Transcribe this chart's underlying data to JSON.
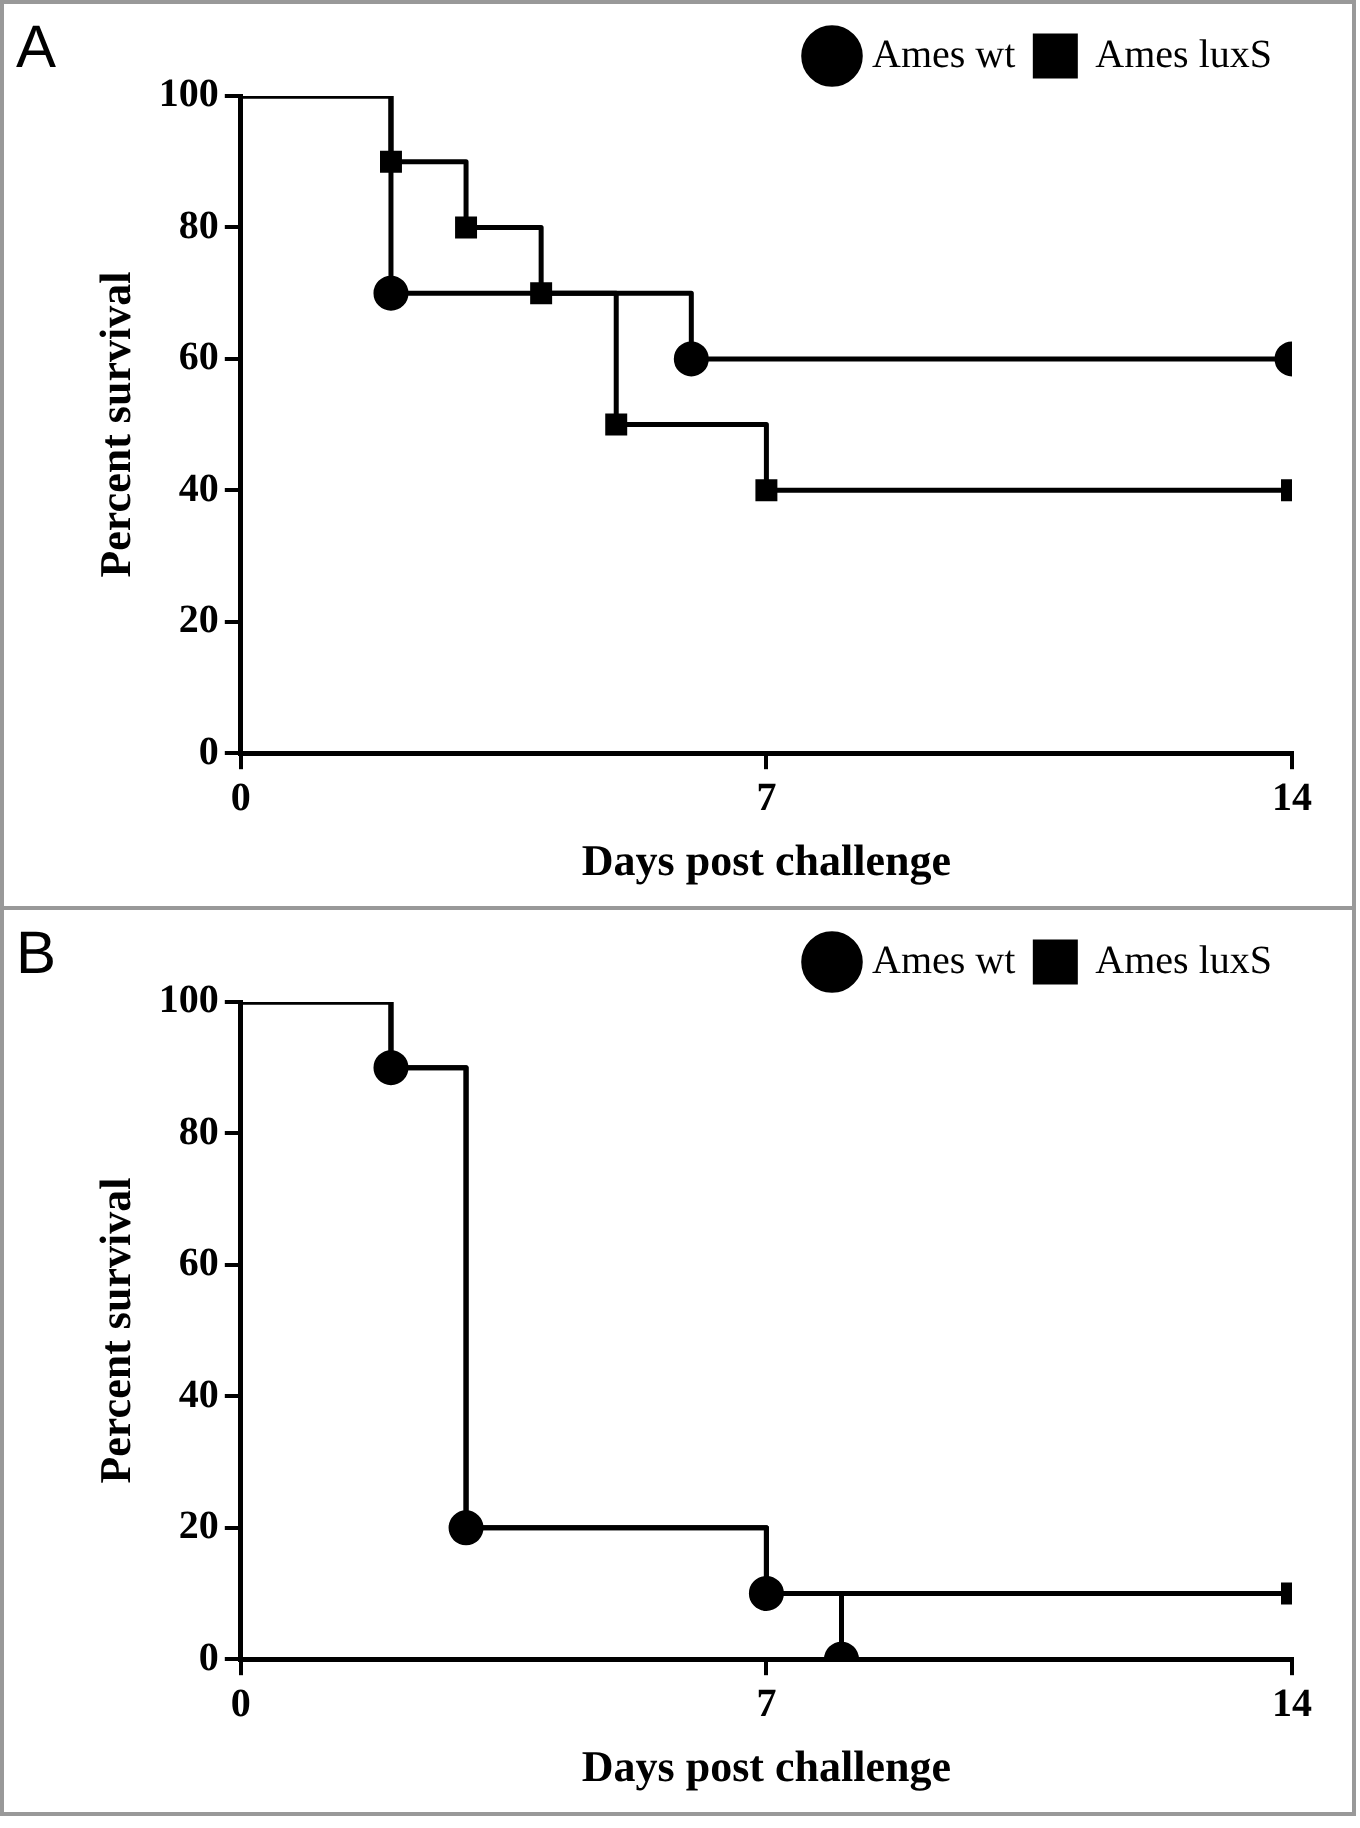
{
  "chart_data": [
    {
      "type": "step",
      "annotations": [
        "A"
      ],
      "xlabel": "Days post challenge",
      "ylabel": "Percent survival",
      "xlim": [
        0,
        14
      ],
      "xticks": [
        0,
        7,
        14
      ],
      "ylim": [
        0,
        100
      ],
      "yticks": [
        0,
        20,
        40,
        60,
        80,
        100
      ],
      "grid": false,
      "legend": "top right",
      "series": [
        {
          "name": "Ames wt",
          "color": "#000000",
          "marker": "circle",
          "x": [
            0,
            2,
            6,
            14
          ],
          "values": [
            100,
            70,
            60,
            60
          ]
        },
        {
          "name": "Ames luxS",
          "color": "#000000",
          "marker": "square",
          "x": [
            0,
            2,
            3,
            4,
            5,
            7,
            14
          ],
          "values": [
            100,
            90,
            80,
            70,
            50,
            40,
            40
          ]
        }
      ]
    },
    {
      "type": "step",
      "annotations": [
        "B"
      ],
      "xlabel": "Days post challenge",
      "ylabel": "Percent survival",
      "xlim": [
        0,
        14
      ],
      "xticks": [
        0,
        7,
        14
      ],
      "ylim": [
        0,
        100
      ],
      "yticks": [
        0,
        20,
        40,
        60,
        80,
        100
      ],
      "grid": false,
      "legend": "top right",
      "series": [
        {
          "name": "Ames wt",
          "color": "#000000",
          "marker": "circle",
          "x": [
            0,
            2,
            3,
            7,
            8
          ],
          "values": [
            100,
            90,
            20,
            10,
            0
          ]
        },
        {
          "name": "Ames luxS",
          "color": "#000000",
          "marker": "square",
          "x": [
            0,
            2,
            3,
            7,
            14
          ],
          "values": [
            100,
            90,
            20,
            10,
            10
          ]
        }
      ]
    }
  ]
}
